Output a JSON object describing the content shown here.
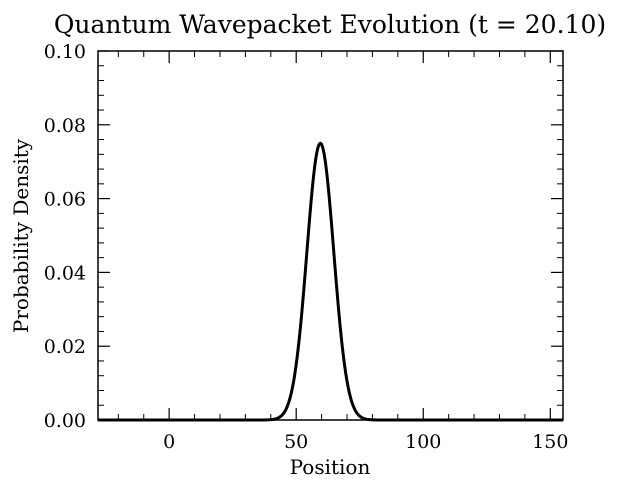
{
  "chart_data": {
    "type": "line",
    "title": "Quantum Wavepacket Evolution (t = 20.10)",
    "xlabel": "Position",
    "ylabel": "Probability Density",
    "xlim": [
      -28,
      155
    ],
    "ylim": [
      0,
      0.1
    ],
    "xticks": [
      0,
      50,
      100,
      150
    ],
    "xtick_labels": [
      "0",
      "50",
      "100",
      "150"
    ],
    "yticks": [
      0,
      0.02,
      0.04,
      0.06,
      0.08,
      0.1
    ],
    "ytick_labels": [
      "0.00",
      "0.02",
      "0.04",
      "0.06",
      "0.08",
      "0.10"
    ],
    "grid": false,
    "legend": "none",
    "line_color": "#000000",
    "series": [
      {
        "curve": "gaussian",
        "peak_x": 59.5,
        "peak_y": 0.075,
        "sigma": 5.3,
        "x_range": [
          -28,
          155
        ]
      }
    ]
  }
}
